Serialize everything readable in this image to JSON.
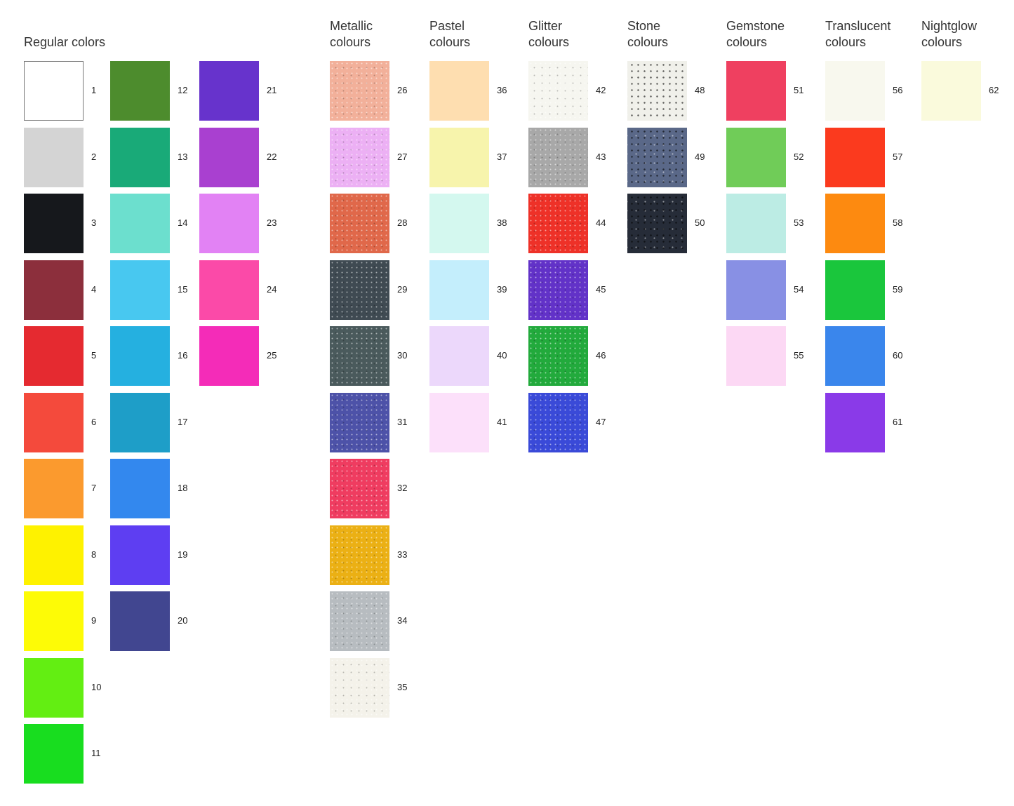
{
  "groups": [
    {
      "title": [
        "Regular colors"
      ],
      "columns": [
        [
          {
            "n": "1",
            "c": "#ffffff"
          },
          {
            "n": "2",
            "c": "#d4d4d4"
          },
          {
            "n": "3",
            "c": "#16181c"
          },
          {
            "n": "4",
            "c": "#8c2f3c"
          },
          {
            "n": "5",
            "c": "#e52a30"
          },
          {
            "n": "6",
            "c": "#f44a3c"
          },
          {
            "n": "7",
            "c": "#fb9a2e"
          },
          {
            "n": "8",
            "c": "#fef200"
          },
          {
            "n": "9",
            "c": "#fdfb06"
          },
          {
            "n": "10",
            "c": "#63ee12"
          },
          {
            "n": "11",
            "c": "#18dd1f"
          }
        ],
        [
          {
            "n": "12",
            "c": "#4d8c2d"
          },
          {
            "n": "13",
            "c": "#19aa78"
          },
          {
            "n": "14",
            "c": "#6cdfce"
          },
          {
            "n": "15",
            "c": "#48c8f0"
          },
          {
            "n": "16",
            "c": "#25b0e0"
          },
          {
            "n": "17",
            "c": "#1e9ec8"
          },
          {
            "n": "18",
            "c": "#3388ee"
          },
          {
            "n": "19",
            "c": "#5e3ef2"
          },
          {
            "n": "20",
            "c": "#414690"
          }
        ],
        [
          {
            "n": "21",
            "c": "#6733cc"
          },
          {
            "n": "22",
            "c": "#a940d0"
          },
          {
            "n": "23",
            "c": "#e282f4"
          },
          {
            "n": "24",
            "c": "#fb4aa8"
          },
          {
            "n": "25",
            "c": "#f42cb8"
          }
        ]
      ]
    },
    {
      "title": [
        "Metallic",
        "colours"
      ],
      "finish": "metallic",
      "columns": [
        [
          {
            "n": "26",
            "c": "#f2b09a"
          },
          {
            "n": "27",
            "c": "#ecb0f4"
          },
          {
            "n": "28",
            "c": "#e0684a"
          },
          {
            "n": "29",
            "c": "#3f4a52"
          },
          {
            "n": "30",
            "c": "#4a5a5c"
          },
          {
            "n": "31",
            "c": "#4d52a8"
          },
          {
            "n": "32",
            "c": "#ef3c60"
          },
          {
            "n": "33",
            "c": "#ebb014"
          },
          {
            "n": "34",
            "c": "#b7bcc0"
          },
          {
            "n": "35",
            "c": "#f4f2ea"
          }
        ]
      ]
    },
    {
      "title": [
        "Pastel",
        "colours"
      ],
      "columns": [
        [
          {
            "n": "36",
            "c": "#fedeb0"
          },
          {
            "n": "37",
            "c": "#f7f4ac"
          },
          {
            "n": "38",
            "c": "#d4f8ef"
          },
          {
            "n": "39",
            "c": "#c4eefc"
          },
          {
            "n": "40",
            "c": "#ecd8fb"
          },
          {
            "n": "41",
            "c": "#fce0fa"
          }
        ]
      ]
    },
    {
      "title": [
        "Glitter",
        "colours"
      ],
      "finish": "glitter",
      "columns": [
        [
          {
            "n": "42",
            "c": "#f6f6f0"
          },
          {
            "n": "43",
            "c": "#a8a8a8"
          },
          {
            "n": "44",
            "c": "#ee3128"
          },
          {
            "n": "45",
            "c": "#6232c8"
          },
          {
            "n": "46",
            "c": "#22aa3c"
          },
          {
            "n": "47",
            "c": "#3a4ad8"
          }
        ]
      ]
    },
    {
      "title": [
        "Stone",
        "colours"
      ],
      "finish": "stone",
      "columns": [
        [
          {
            "n": "48",
            "c": "#f0f0ea"
          },
          {
            "n": "49",
            "c": "#5a6888"
          },
          {
            "n": "50",
            "c": "#262c38"
          }
        ]
      ]
    },
    {
      "title": [
        "Gemstone",
        "colours"
      ],
      "columns": [
        [
          {
            "n": "51",
            "c": "#ef4060"
          },
          {
            "n": "52",
            "c": "#70cc58"
          },
          {
            "n": "53",
            "c": "#bcece4"
          },
          {
            "n": "54",
            "c": "#8890e4"
          },
          {
            "n": "55",
            "c": "#fcd8f4"
          }
        ]
      ]
    },
    {
      "title": [
        "Translucent",
        "colours"
      ],
      "columns": [
        [
          {
            "n": "56",
            "c": "#f8f8ee"
          },
          {
            "n": "57",
            "c": "#fb3a1e"
          },
          {
            "n": "58",
            "c": "#fd8a10"
          },
          {
            "n": "59",
            "c": "#1ac63c"
          },
          {
            "n": "60",
            "c": "#3a86ec"
          },
          {
            "n": "61",
            "c": "#8a3ae8"
          }
        ]
      ]
    },
    {
      "title": [
        "Nightglow",
        "colours"
      ],
      "columns": [
        [
          {
            "n": "62",
            "c": "#fafadc"
          }
        ]
      ]
    }
  ]
}
